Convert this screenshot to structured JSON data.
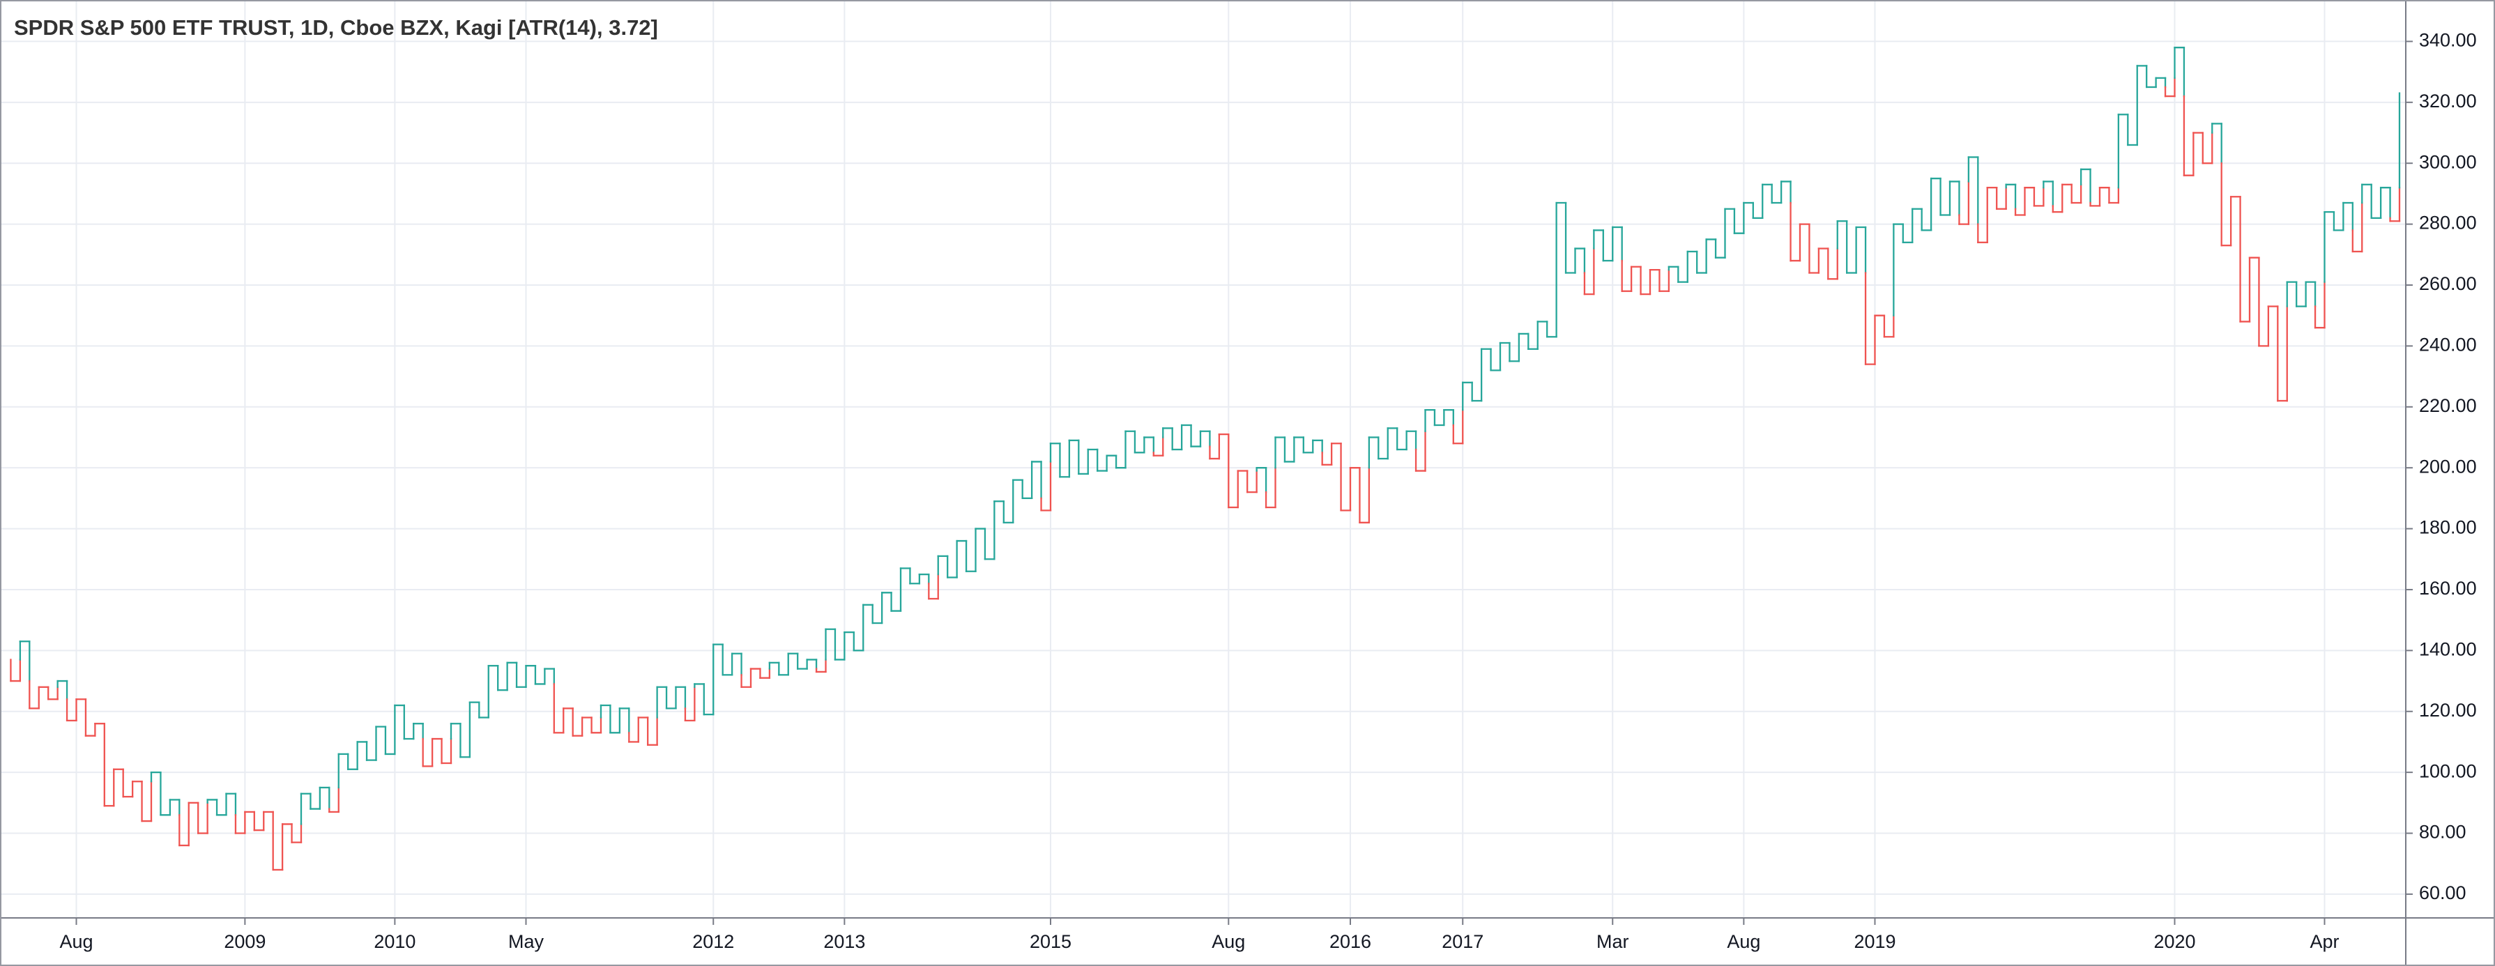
{
  "chart_data": {
    "type": "kagi",
    "title": "SPDR S&P 500 ETF TRUST, 1D, Cboe BZX, Kagi [ATR(14), 3.72]",
    "up_color": "#26a69a",
    "down_color": "#ef5350",
    "grid": true,
    "ylim": [
      52.2,
      353.6
    ],
    "yticks": [
      {
        "value": 60,
        "label": "60.00"
      },
      {
        "value": 80,
        "label": "80.00"
      },
      {
        "value": 100,
        "label": "100.00"
      },
      {
        "value": 120,
        "label": "120.00"
      },
      {
        "value": 140,
        "label": "140.00"
      },
      {
        "value": 160,
        "label": "160.00"
      },
      {
        "value": 180,
        "label": "180.00"
      },
      {
        "value": 200,
        "label": "200.00"
      },
      {
        "value": 220,
        "label": "220.00"
      },
      {
        "value": 240,
        "label": "240.00"
      },
      {
        "value": 260,
        "label": "260.00"
      },
      {
        "value": 280,
        "label": "280.00"
      },
      {
        "value": 300,
        "label": "300.00"
      },
      {
        "value": 320,
        "label": "320.00"
      },
      {
        "value": 340,
        "label": "340.00"
      }
    ],
    "categories": [
      null,
      null,
      null,
      null,
      null,
      null,
      null,
      null,
      "Aug",
      null,
      null,
      null,
      null,
      null,
      null,
      null,
      null,
      null,
      null,
      null,
      null,
      null,
      null,
      null,
      null,
      null,
      "2009",
      null,
      null,
      null,
      null,
      null,
      null,
      null,
      null,
      null,
      null,
      null,
      null,
      null,
      null,
      null,
      "2010",
      null,
      null,
      null,
      null,
      null,
      null,
      null,
      null,
      null,
      null,
      null,
      null,
      null,
      "May",
      null,
      null,
      null,
      null,
      null,
      null,
      null,
      null,
      null,
      null,
      null,
      null,
      null,
      null,
      null,
      null,
      null,
      null,
      null,
      "2012",
      null,
      null,
      null,
      null,
      null,
      null,
      null,
      null,
      null,
      null,
      null,
      null,
      null,
      "2013",
      null,
      null,
      null,
      null,
      null,
      null,
      null,
      null,
      null,
      null,
      null,
      null,
      null,
      null,
      null,
      null,
      null,
      null,
      null,
      null,
      null,
      "2015",
      null,
      null,
      null,
      null,
      null,
      null,
      null,
      null,
      null,
      null,
      null,
      null,
      null,
      null,
      null,
      null,
      null,
      null,
      "Aug",
      null,
      null,
      null,
      null,
      null,
      null,
      null,
      null,
      null,
      null,
      null,
      null,
      "2016",
      null,
      null,
      null,
      null,
      null,
      null,
      null,
      null,
      null,
      null,
      null,
      "2017",
      null,
      null,
      null,
      null,
      null,
      null,
      null,
      null,
      null,
      null,
      null,
      null,
      null,
      null,
      null,
      "Mar",
      null,
      null,
      null,
      null,
      null,
      null,
      null,
      null,
      null,
      null,
      null,
      null,
      null,
      "Aug",
      null,
      null,
      null,
      null,
      null,
      null,
      null,
      null,
      null,
      null,
      null,
      null,
      null,
      "2019",
      null,
      null,
      null,
      null,
      null,
      null,
      null,
      null,
      null,
      null,
      null,
      null,
      null,
      null,
      null,
      null,
      null,
      null,
      null,
      null,
      null,
      null,
      null,
      null,
      null,
      null,
      null,
      null,
      null,
      null,
      null,
      "2020",
      null,
      null,
      null,
      null,
      null,
      null,
      null,
      null,
      null,
      null,
      null,
      null,
      null,
      null,
      null,
      "Apr",
      null,
      null,
      null,
      null,
      null,
      null,
      null,
      null
    ],
    "values": [
      137,
      130,
      143,
      121,
      128,
      124,
      130,
      117,
      124,
      112,
      116,
      89,
      101,
      92,
      97,
      84,
      100,
      86,
      91,
      76,
      90,
      80,
      91,
      86,
      93,
      80,
      87,
      81,
      87,
      68,
      83,
      77,
      93,
      88,
      95,
      87,
      106,
      101,
      110,
      104,
      115,
      106,
      122,
      111,
      116,
      102,
      111,
      103,
      116,
      105,
      123,
      118,
      135,
      127,
      136,
      128,
      135,
      129,
      134,
      113,
      121,
      112,
      118,
      113,
      122,
      113,
      121,
      110,
      118,
      109,
      128,
      121,
      128,
      117,
      129,
      119,
      142,
      132,
      139,
      128,
      134,
      131,
      136,
      132,
      139,
      134,
      137,
      133,
      147,
      137,
      146,
      140,
      155,
      149,
      159,
      153,
      167,
      162,
      165,
      157,
      171,
      164,
      176,
      166,
      180,
      170,
      189,
      182,
      196,
      190,
      202,
      186,
      208,
      197,
      209,
      198,
      206,
      199,
      204,
      200,
      212,
      205,
      210,
      204,
      213,
      206,
      214,
      207,
      212,
      203,
      211,
      187,
      199,
      192,
      200,
      187,
      210,
      202,
      210,
      205,
      209,
      201,
      208,
      186,
      200,
      182,
      210,
      203,
      213,
      206,
      212,
      199,
      219,
      214,
      219,
      208,
      228,
      222,
      239,
      232,
      241,
      235,
      244,
      239,
      248,
      243,
      287,
      264,
      272,
      257,
      278,
      268,
      279,
      258,
      266,
      257,
      265,
      258,
      266,
      261,
      271,
      264,
      275,
      269,
      285,
      277,
      287,
      282,
      293,
      287,
      294,
      268,
      280,
      264,
      272,
      262,
      281,
      264,
      279,
      234,
      250,
      243,
      280,
      274,
      285,
      278,
      295,
      283,
      294,
      280,
      302,
      274,
      292,
      285,
      293,
      283,
      292,
      286,
      294,
      284,
      293,
      287,
      298,
      286,
      292,
      287,
      316,
      306,
      332,
      325,
      328,
      322,
      338,
      296,
      310,
      300,
      313,
      273,
      289,
      248,
      269,
      240,
      253,
      222,
      261,
      253,
      261,
      246,
      284,
      278,
      287,
      271,
      293,
      282,
      292,
      281,
      323
    ]
  }
}
